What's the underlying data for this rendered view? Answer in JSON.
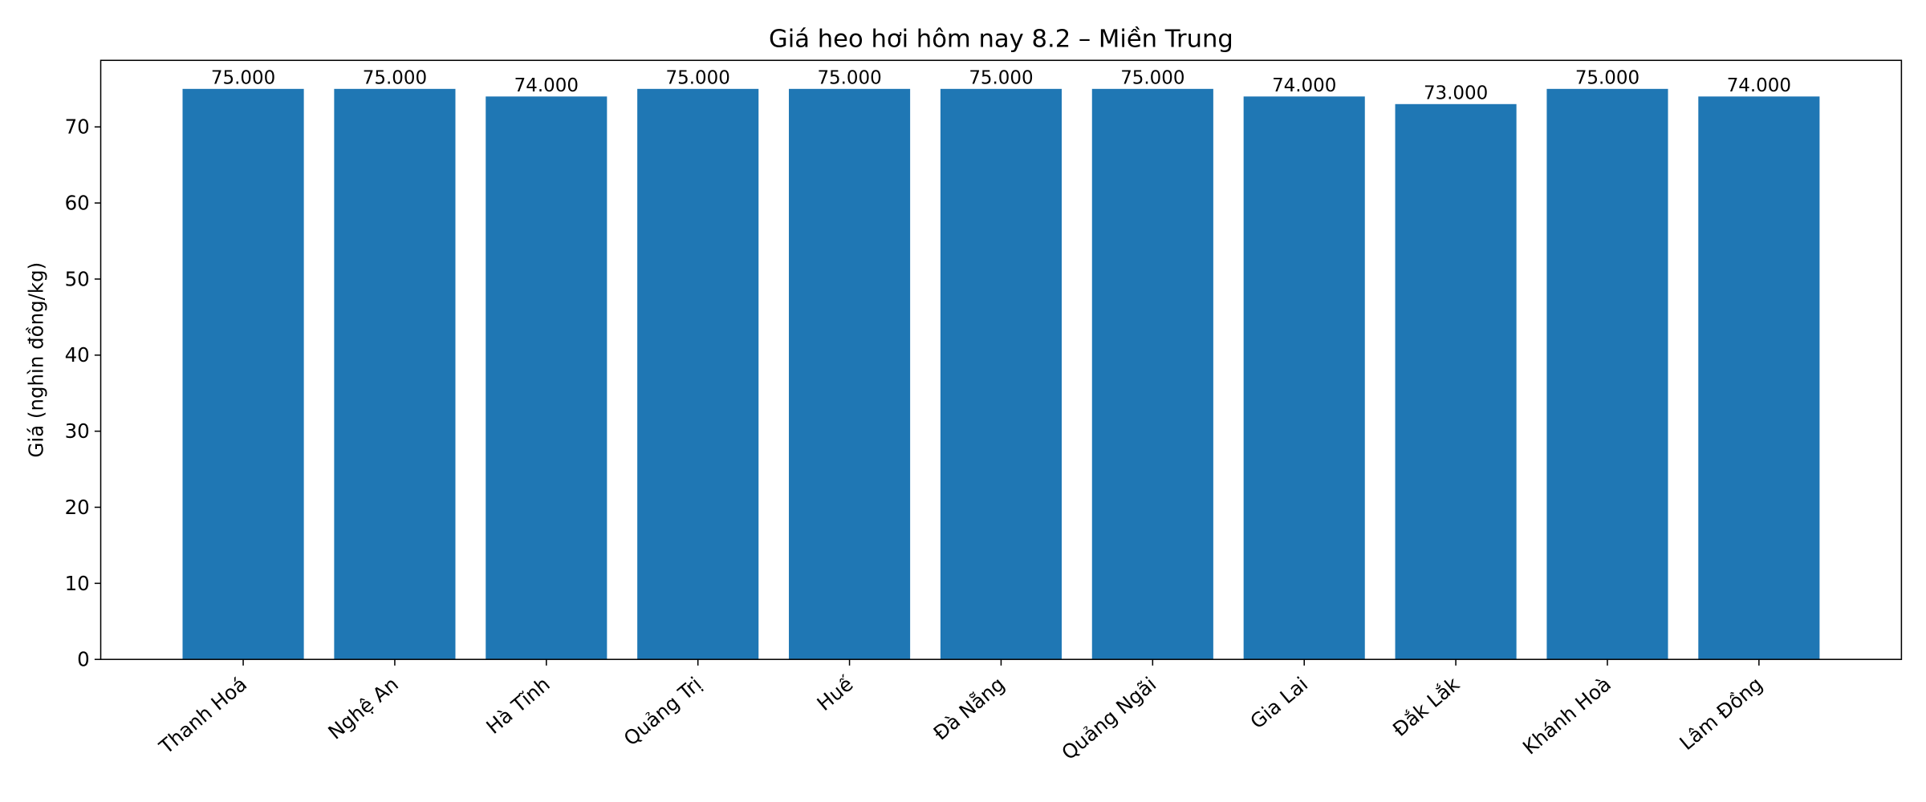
{
  "chart_data": {
    "type": "bar",
    "title": "Giá heo hơi hôm nay 8.2 – Miền Trung",
    "y_label": "Giá (nghìn đồng/kg)",
    "categories": [
      "Thanh Hoá",
      "Nghệ An",
      "Hà Tĩnh",
      "Quảng Trị",
      "Huế",
      "Đà Nẵng",
      "Quảng Ngãi",
      "Gia Lai",
      "Đắk Lắk",
      "Khánh Hoà",
      "Lâm Đồng"
    ],
    "values": [
      75,
      75,
      74,
      75,
      75,
      75,
      75,
      74,
      73,
      75,
      74
    ],
    "value_labels": [
      "75.000",
      "75.000",
      "74.000",
      "75.000",
      "75.000",
      "75.000",
      "75.000",
      "74.000",
      "73.000",
      "75.000",
      "74.000"
    ],
    "color": "#1f77b4",
    "ylim": [
      0,
      78.75
    ],
    "yticks": [
      0,
      10,
      20,
      30,
      40,
      50,
      60,
      70
    ],
    "grid": false
  }
}
